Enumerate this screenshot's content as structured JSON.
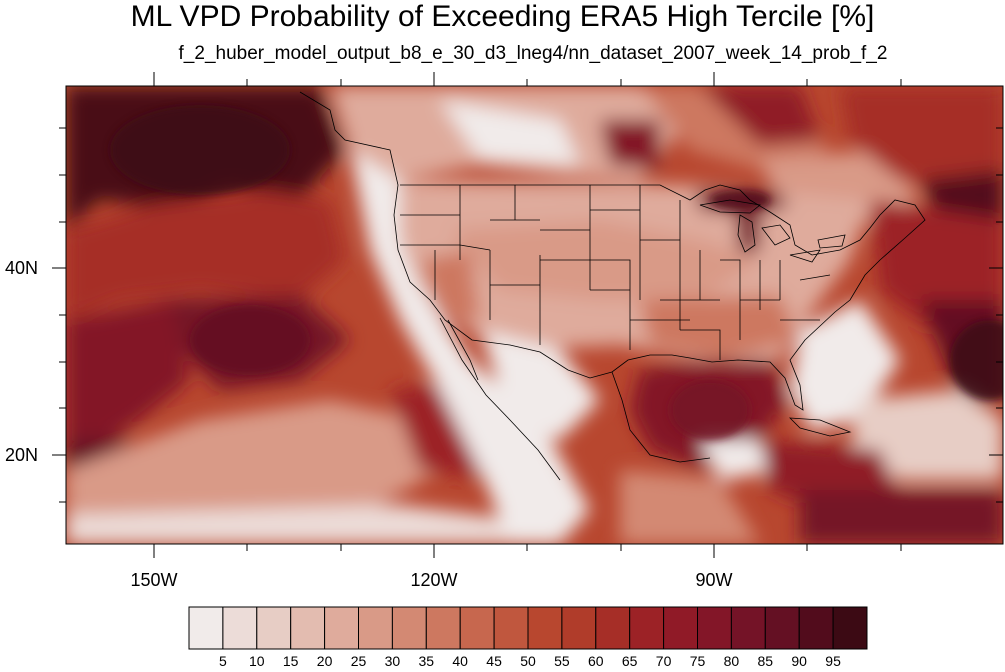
{
  "title": "ML VPD Probability of Exceeding ERA5 High Tercile [%]",
  "subtitle": "f_2_huber_model_output_b8_e_30_d3_lneg4/nn_dataset_2007_week_14_prob_f_2",
  "map": {
    "projection": "cylindrical-equidistant",
    "variable": "probability of VPD exceeding ERA5 high tercile",
    "units": "%",
    "lon_range": [
      -160,
      -56
    ],
    "lat_range": [
      11,
      60
    ],
    "lat_labels": [
      {
        "value": 40,
        "text": "40N"
      },
      {
        "value": 20,
        "text": "20N"
      }
    ],
    "lon_labels": [
      {
        "value": -150,
        "text": "150W"
      },
      {
        "value": -120,
        "text": "120W"
      },
      {
        "value": -90,
        "text": "90W"
      }
    ],
    "boundaries": [
      "coastlines",
      "US state borders",
      "Canada",
      "Mexico"
    ]
  },
  "colorbar": {
    "levels": [
      5,
      10,
      15,
      20,
      25,
      30,
      35,
      40,
      45,
      50,
      55,
      60,
      65,
      70,
      75,
      80,
      85,
      90,
      95
    ],
    "colors": [
      "#f1ebea",
      "#ecdcd8",
      "#e7cdc5",
      "#e3bcb0",
      "#dfab9c",
      "#d99a87",
      "#d38973",
      "#cd7860",
      "#c7674e",
      "#c0573e",
      "#b8472f",
      "#b03c2a",
      "#a62e27",
      "#9c2226",
      "#901a27",
      "#831628",
      "#741327",
      "#641023",
      "#520c1c",
      "#3c0a14"
    ],
    "label_values": [
      "5",
      "10",
      "15",
      "20",
      "25",
      "30",
      "35",
      "40",
      "45",
      "50",
      "55",
      "60",
      "65",
      "70",
      "75",
      "80",
      "85",
      "90",
      "95"
    ]
  }
}
